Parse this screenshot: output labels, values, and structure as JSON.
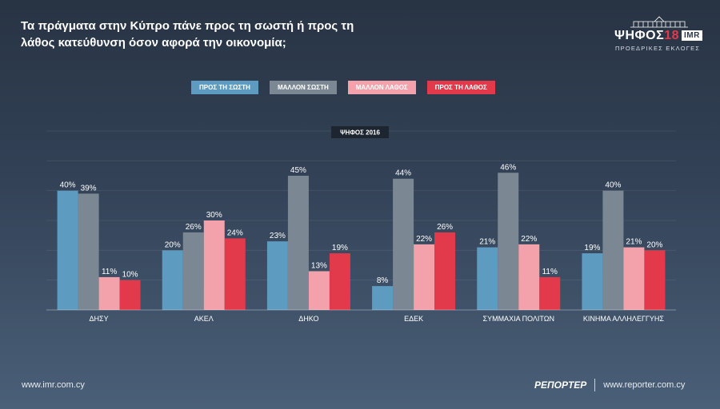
{
  "title": "Τα πράγματα στην Κύπρο πάνε προς τη σωστή ή προς τη λάθος κατεύθυνση όσον αφορά την οικονομία;",
  "logo": {
    "brand": "ΨΗΦΟΣ",
    "brand_num": "18",
    "imr": "IMR",
    "subtitle": "ΠΡΟΕΔΡΙΚΕΣ ΕΚΛΟΓΕΣ"
  },
  "badge": "ΨΗΦΟΣ 2016",
  "footer": {
    "left": "www.imr.com.cy",
    "paper": "ΡΕΠΟΡΤΕΡ",
    "right": "www.reporter.com.cy"
  },
  "chart_data": {
    "type": "bar",
    "categories": [
      "ΔΗΣΥ",
      "ΑΚΕΛ",
      "ΔΗΚΟ",
      "ΕΔΕΚ",
      "ΣΥΜΜΑΧΙΑ ΠΟΛΙΤΩΝ",
      "ΚΙΝΗΜΑ ΑΛΛΗΛΕΓΓΥΗΣ"
    ],
    "series": [
      {
        "name": "ΠΡΟΣ ΤΗ ΣΩΣΤΗ",
        "color": "#5d9cc0",
        "values": [
          40,
          20,
          23,
          8,
          21,
          19
        ]
      },
      {
        "name": "ΜΑΛΛΟΝ ΣΩΣΤΗ",
        "color": "#7b8893",
        "values": [
          39,
          26,
          45,
          44,
          46,
          40
        ]
      },
      {
        "name": "ΜΑΛΛΟΝ ΛΑΘΟΣ",
        "color": "#f3a1aa",
        "values": [
          11,
          30,
          13,
          22,
          22,
          21
        ]
      },
      {
        "name": "ΠΡΟΣ ΤΗ ΛΑΘΟΣ",
        "color": "#e23a4b",
        "values": [
          10,
          24,
          19,
          26,
          11,
          20
        ]
      }
    ],
    "value_suffix": "%",
    "ylim": [
      0,
      60
    ],
    "grid": true,
    "legend": "top-center"
  }
}
